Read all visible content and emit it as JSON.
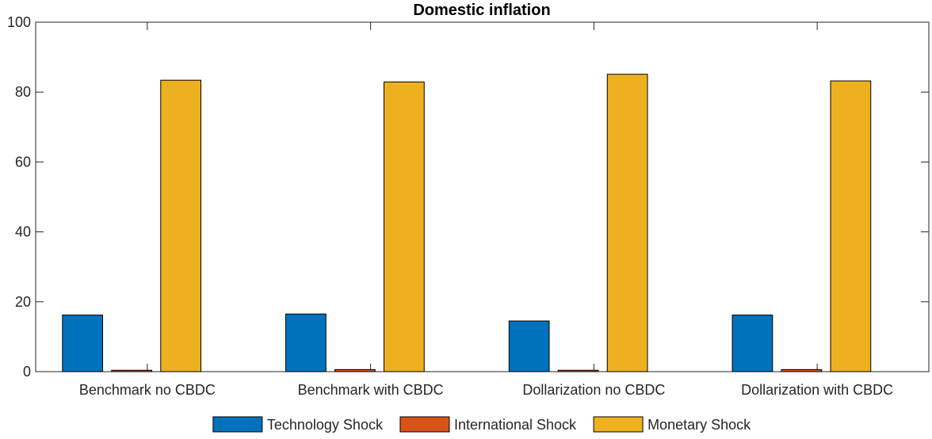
{
  "chart_data": {
    "type": "bar",
    "title": "Domestic inflation",
    "xlabel": "",
    "ylabel": "",
    "categories": [
      "Benchmark no CBDC",
      "Benchmark with CBDC",
      "Dollarization no CBDC",
      "Dollarization with CBDC"
    ],
    "series": [
      {
        "name": "Technology Shock",
        "color": "#0072BD",
        "values": [
          16.2,
          16.5,
          14.5,
          16.2
        ]
      },
      {
        "name": "International Shock",
        "color": "#D95319",
        "values": [
          0.4,
          0.6,
          0.4,
          0.6
        ]
      },
      {
        "name": "Monetary Shock",
        "color": "#EDB120",
        "values": [
          83.4,
          82.9,
          85.1,
          83.2
        ]
      }
    ],
    "ylim": [
      0,
      100
    ],
    "yticks": [
      0,
      20,
      40,
      60,
      80,
      100
    ],
    "grid": false,
    "legend_position": "bottom"
  }
}
